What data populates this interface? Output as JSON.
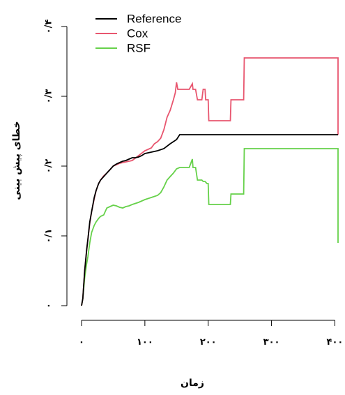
{
  "chart_data": {
    "type": "line",
    "xlabel": "زمان",
    "ylabel": "خطای پیش بینی",
    "xlim": [
      0,
      405
    ],
    "ylim": [
      0,
      0.4
    ],
    "x_ticks": [
      {
        "value": 0,
        "label": "۰"
      },
      {
        "value": 100,
        "label": "۱۰۰"
      },
      {
        "value": 200,
        "label": "۲۰۰"
      },
      {
        "value": 300,
        "label": "۳۰۰"
      },
      {
        "value": 400,
        "label": "۴۰۰"
      }
    ],
    "y_ticks": [
      {
        "value": 0,
        "label": "۰"
      },
      {
        "value": 0.1,
        "label": "۰/۱"
      },
      {
        "value": 0.2,
        "label": "۰/۲"
      },
      {
        "value": 0.3,
        "label": "۰/۳"
      },
      {
        "value": 0.4,
        "label": "۰/۴"
      }
    ],
    "legend": {
      "position": "top-left"
    },
    "series": [
      {
        "name": "Reference",
        "color": "#000000",
        "points": [
          [
            0,
            0
          ],
          [
            2,
            0.01
          ],
          [
            5,
            0.05
          ],
          [
            8,
            0.08
          ],
          [
            10,
            0.095
          ],
          [
            13,
            0.12
          ],
          [
            16,
            0.135
          ],
          [
            20,
            0.155
          ],
          [
            23,
            0.165
          ],
          [
            27,
            0.175
          ],
          [
            30,
            0.18
          ],
          [
            35,
            0.185
          ],
          [
            40,
            0.19
          ],
          [
            45,
            0.195
          ],
          [
            50,
            0.2
          ],
          [
            55,
            0.203
          ],
          [
            60,
            0.205
          ],
          [
            65,
            0.207
          ],
          [
            70,
            0.208
          ],
          [
            75,
            0.21
          ],
          [
            80,
            0.212
          ],
          [
            85,
            0.212
          ],
          [
            90,
            0.213
          ],
          [
            95,
            0.215
          ],
          [
            100,
            0.218
          ],
          [
            110,
            0.22
          ],
          [
            120,
            0.222
          ],
          [
            130,
            0.225
          ],
          [
            140,
            0.232
          ],
          [
            150,
            0.238
          ],
          [
            155,
            0.245
          ],
          [
            170,
            0.245
          ],
          [
            200,
            0.245
          ],
          [
            300,
            0.245
          ],
          [
            405,
            0.245
          ]
        ]
      },
      {
        "name": "Cox",
        "color": "#e8566f",
        "points": [
          [
            0,
            0
          ],
          [
            2,
            0.01
          ],
          [
            5,
            0.05
          ],
          [
            8,
            0.078
          ],
          [
            10,
            0.095
          ],
          [
            13,
            0.118
          ],
          [
            16,
            0.135
          ],
          [
            20,
            0.153
          ],
          [
            23,
            0.165
          ],
          [
            27,
            0.175
          ],
          [
            30,
            0.18
          ],
          [
            35,
            0.186
          ],
          [
            40,
            0.19
          ],
          [
            45,
            0.195
          ],
          [
            50,
            0.2
          ],
          [
            55,
            0.202
          ],
          [
            60,
            0.204
          ],
          [
            70,
            0.206
          ],
          [
            80,
            0.208
          ],
          [
            90,
            0.215
          ],
          [
            100,
            0.222
          ],
          [
            110,
            0.226
          ],
          [
            115,
            0.232
          ],
          [
            120,
            0.235
          ],
          [
            125,
            0.24
          ],
          [
            130,
            0.252
          ],
          [
            135,
            0.27
          ],
          [
            140,
            0.28
          ],
          [
            145,
            0.295
          ],
          [
            148,
            0.305
          ],
          [
            150,
            0.32
          ],
          [
            152,
            0.31
          ],
          [
            155,
            0.31
          ],
          [
            160,
            0.31
          ],
          [
            170,
            0.31
          ],
          [
            175,
            0.318
          ],
          [
            176,
            0.31
          ],
          [
            180,
            0.31
          ],
          [
            183,
            0.295
          ],
          [
            190,
            0.295
          ],
          [
            192,
            0.31
          ],
          [
            195,
            0.31
          ],
          [
            196,
            0.295
          ],
          [
            200,
            0.295
          ],
          [
            201,
            0.265
          ],
          [
            235,
            0.265
          ],
          [
            236,
            0.295
          ],
          [
            256,
            0.295
          ],
          [
            257,
            0.355
          ],
          [
            405,
            0.355
          ],
          [
            405,
            0.245
          ]
        ]
      },
      {
        "name": "RSF",
        "color": "#66d14a",
        "points": [
          [
            0,
            0
          ],
          [
            2,
            0.01
          ],
          [
            5,
            0.04
          ],
          [
            8,
            0.06
          ],
          [
            10,
            0.07
          ],
          [
            13,
            0.09
          ],
          [
            16,
            0.105
          ],
          [
            20,
            0.115
          ],
          [
            23,
            0.12
          ],
          [
            27,
            0.125
          ],
          [
            30,
            0.128
          ],
          [
            35,
            0.13
          ],
          [
            40,
            0.14
          ],
          [
            45,
            0.142
          ],
          [
            50,
            0.144
          ],
          [
            55,
            0.143
          ],
          [
            60,
            0.141
          ],
          [
            65,
            0.14
          ],
          [
            70,
            0.142
          ],
          [
            75,
            0.143
          ],
          [
            80,
            0.145
          ],
          [
            90,
            0.148
          ],
          [
            100,
            0.152
          ],
          [
            110,
            0.155
          ],
          [
            120,
            0.158
          ],
          [
            125,
            0.162
          ],
          [
            130,
            0.17
          ],
          [
            135,
            0.18
          ],
          [
            140,
            0.185
          ],
          [
            145,
            0.19
          ],
          [
            150,
            0.196
          ],
          [
            155,
            0.198
          ],
          [
            165,
            0.198
          ],
          [
            170,
            0.198
          ],
          [
            175,
            0.21
          ],
          [
            176,
            0.198
          ],
          [
            180,
            0.198
          ],
          [
            183,
            0.18
          ],
          [
            190,
            0.18
          ],
          [
            192,
            0.178
          ],
          [
            195,
            0.178
          ],
          [
            198,
            0.175
          ],
          [
            200,
            0.175
          ],
          [
            201,
            0.145
          ],
          [
            235,
            0.145
          ],
          [
            236,
            0.16
          ],
          [
            256,
            0.16
          ],
          [
            257,
            0.225
          ],
          [
            405,
            0.225
          ],
          [
            405,
            0.09
          ]
        ]
      }
    ]
  }
}
